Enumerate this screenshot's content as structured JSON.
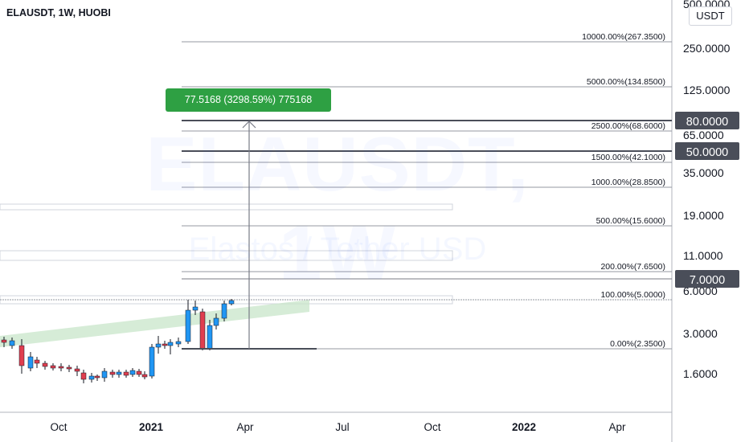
{
  "header": {
    "symbol_title": "ELAUSDT, 1W, HUOBI"
  },
  "watermark": {
    "symbol": "ELAUSDT, 1W",
    "description": "Elastos / Tether USD"
  },
  "price_scale": {
    "currency": "USDT",
    "ticks": [
      "500.0000",
      "250.0000",
      "125.0000",
      "65.0000",
      "35.0000",
      "19.0000",
      "11.0000",
      "6.0000",
      "3.0000",
      "1.6000"
    ],
    "highlighted": [
      {
        "label": "80.0000",
        "color": "#4a4e59"
      },
      {
        "label": "50.0000",
        "color": "#4a4e59"
      },
      {
        "label": "7.0000",
        "color": "#4a4e59"
      }
    ]
  },
  "time_axis": {
    "labels": [
      "Oct",
      "2021",
      "Apr",
      "Jul",
      "Oct",
      "2022",
      "Apr"
    ]
  },
  "fib_levels": [
    {
      "label": "10000.00%(267.3500)"
    },
    {
      "label": "5000.00%(134.8500)"
    },
    {
      "label": "2500.00%(68.6000)"
    },
    {
      "label": "1500.00%(42.1000)"
    },
    {
      "label": "1000.00%(28.8500)"
    },
    {
      "label": "500.00%(15.6000)"
    },
    {
      "label": "200.00%(7.6500)"
    },
    {
      "label": "100.00%(5.0000)"
    },
    {
      "label": "0.00%(2.3500)"
    }
  ],
  "measure": {
    "label": "77.5168 (3298.59%) 775168",
    "color": "#2ea043"
  },
  "colors": {
    "up": "#2196f3",
    "down": "#e03e4f",
    "grid_line": "#9598a1",
    "channel": "#c8e6c9"
  }
}
